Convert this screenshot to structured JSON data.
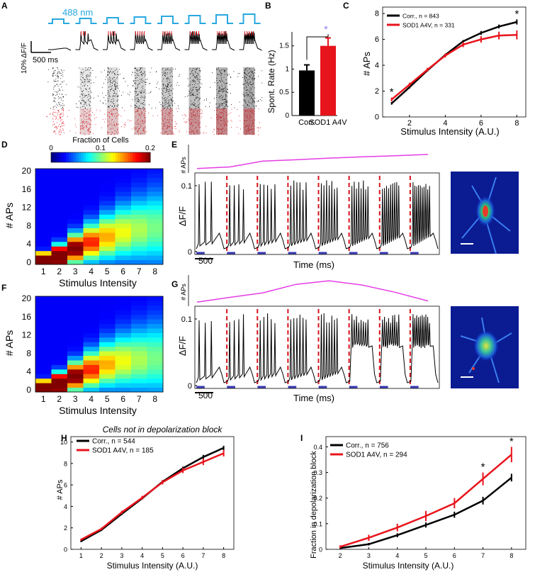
{
  "panels": {
    "A": "A",
    "B": "B",
    "C": "C",
    "D": "D",
    "E": "E",
    "F": "F",
    "G": "G",
    "H": "H",
    "I": "I"
  },
  "panelA": {
    "light_label": "488 nm",
    "scale_y_label": "10% ΔF/F",
    "scale_x_label": "500 ms",
    "light_color": "#29a8e0",
    "raster_colors": [
      "#000000",
      "#e0141e"
    ]
  },
  "colors": {
    "corr": "#000000",
    "sod1": "#e8141c",
    "aps_trace": "#e43ee4",
    "stim": "#d8141c",
    "light_bar": "#3a3ab4"
  },
  "chart_data": [
    {
      "id": "B",
      "type": "bar",
      "ylabel": "Spont. Rate (Hz)",
      "categories": [
        "Corr.",
        "SOD1 A4V"
      ],
      "values": [
        0.97,
        1.5
      ],
      "errors": [
        0.12,
        0.17
      ],
      "colors": [
        "#000000",
        "#e8141c"
      ],
      "ylim": [
        0,
        1.8
      ],
      "yticks": [
        "0",
        "0.5",
        "1",
        "1.5"
      ],
      "significance": "*"
    },
    {
      "id": "C",
      "type": "line",
      "xlabel": "Stimulus Intensity (A.U.)",
      "ylabel": "# APs",
      "xlim": [
        0.5,
        8.5
      ],
      "ylim": [
        0,
        8.5
      ],
      "xticks": [
        "2",
        "4",
        "6",
        "8"
      ],
      "yticks": [
        "0",
        "2",
        "4",
        "6",
        "8"
      ],
      "x": [
        1,
        2,
        3,
        4,
        5,
        6,
        7,
        8
      ],
      "series": [
        {
          "name": "Corr., n = 843",
          "values": [
            1.05,
            2.3,
            3.6,
            4.8,
            5.85,
            6.5,
            7.0,
            7.35
          ],
          "errors": [
            0.1,
            0.1,
            0.1,
            0.1,
            0.1,
            0.15,
            0.15,
            0.2
          ]
        },
        {
          "name": "SOD1 A4V, n = 331",
          "values": [
            1.35,
            2.5,
            3.65,
            4.75,
            5.6,
            6.0,
            6.3,
            6.35
          ],
          "errors": [
            0.15,
            0.15,
            0.15,
            0.15,
            0.2,
            0.25,
            0.3,
            0.35
          ]
        }
      ],
      "stars": [
        1,
        8
      ]
    },
    {
      "id": "D",
      "type": "heatmap",
      "colorbar_title": "Fraction of Cells",
      "colorbar_ticks": [
        "0",
        "0.1",
        "0.2"
      ],
      "xlabel": "Stimulus Intensity",
      "ylabel": "# APs",
      "xticks": [
        "1",
        "2",
        "3",
        "4",
        "5",
        "6",
        "7",
        "8"
      ],
      "yticks": [
        "0",
        "4",
        "8",
        "12",
        "16",
        "20"
      ]
    },
    {
      "id": "E",
      "type": "line",
      "trace_ylabel": "# APs",
      "ylabel": "ΔF/F",
      "xlabel": "Time (ms)",
      "yticks": [
        "0",
        "0.1"
      ],
      "scalebar_label": "500",
      "aps_trace": [
        0.62,
        1.2,
        3.4,
        3.9,
        4.5,
        5.0,
        5.4,
        5.9
      ]
    },
    {
      "id": "F",
      "type": "heatmap",
      "xlabel": "Stimulus Intensity",
      "ylabel": "# APs",
      "xticks": [
        "1",
        "2",
        "3",
        "4",
        "5",
        "6",
        "7",
        "8"
      ],
      "yticks": [
        "0",
        "4",
        "8",
        "12",
        "16",
        "20"
      ]
    },
    {
      "id": "G",
      "type": "line",
      "trace_ylabel": "# APs",
      "ylabel": "ΔF/F",
      "xlabel": "Time (ms)",
      "yticks": [
        "0",
        "0.1"
      ],
      "scalebar_label": "500",
      "aps_trace": [
        0.4,
        2.0,
        3.5,
        6.3,
        7.5,
        6.1,
        3.7,
        0.8
      ]
    },
    {
      "id": "H",
      "type": "line",
      "title": "Cells not in depolarization block",
      "xlabel": "Stimulus Intensity (A.U.)",
      "ylabel": "# APs",
      "xlim": [
        0.5,
        8.5
      ],
      "ylim": [
        0,
        10.5
      ],
      "xticks": [
        "1",
        "2",
        "3",
        "4",
        "5",
        "6",
        "7",
        "8"
      ],
      "yticks": [
        "0",
        "2",
        "4",
        "6",
        "8",
        "10"
      ],
      "x": [
        1,
        2,
        3,
        4,
        5,
        6,
        7,
        8
      ],
      "series": [
        {
          "name": "Corr., n = 544",
          "values": [
            0.75,
            1.8,
            3.3,
            4.75,
            6.3,
            7.55,
            8.6,
            9.45
          ],
          "errors": [
            0.08,
            0.1,
            0.1,
            0.12,
            0.15,
            0.15,
            0.2,
            0.2
          ]
        },
        {
          "name": "SOD1 A4V, n = 185",
          "values": [
            0.9,
            1.9,
            3.45,
            4.8,
            6.25,
            7.35,
            8.15,
            8.95
          ],
          "errors": [
            0.1,
            0.12,
            0.15,
            0.18,
            0.2,
            0.25,
            0.3,
            0.3
          ]
        }
      ]
    },
    {
      "id": "I",
      "type": "line",
      "xlabel": "Stimulus Intensity (A.U.)",
      "ylabel": "Fraction in depolarization block",
      "xlim": [
        1.5,
        8.5
      ],
      "ylim": [
        0,
        0.44
      ],
      "xticks": [
        "2",
        "3",
        "4",
        "5",
        "6",
        "7",
        "8"
      ],
      "yticks": [
        "0",
        "0.1",
        "0.2",
        "0.3",
        "0.4"
      ],
      "x": [
        2,
        3,
        4,
        5,
        6,
        7,
        8
      ],
      "series": [
        {
          "name": "Corr., n = 756",
          "values": [
            0.005,
            0.02,
            0.055,
            0.095,
            0.135,
            0.19,
            0.28
          ],
          "errors": [
            0.004,
            0.005,
            0.008,
            0.01,
            0.012,
            0.015,
            0.015
          ]
        },
        {
          "name": "SOD1 A4V, n = 294",
          "values": [
            0.01,
            0.045,
            0.085,
            0.13,
            0.18,
            0.275,
            0.37
          ],
          "errors": [
            0.006,
            0.012,
            0.015,
            0.02,
            0.02,
            0.025,
            0.03
          ]
        }
      ],
      "stars": [
        7,
        8
      ]
    }
  ]
}
